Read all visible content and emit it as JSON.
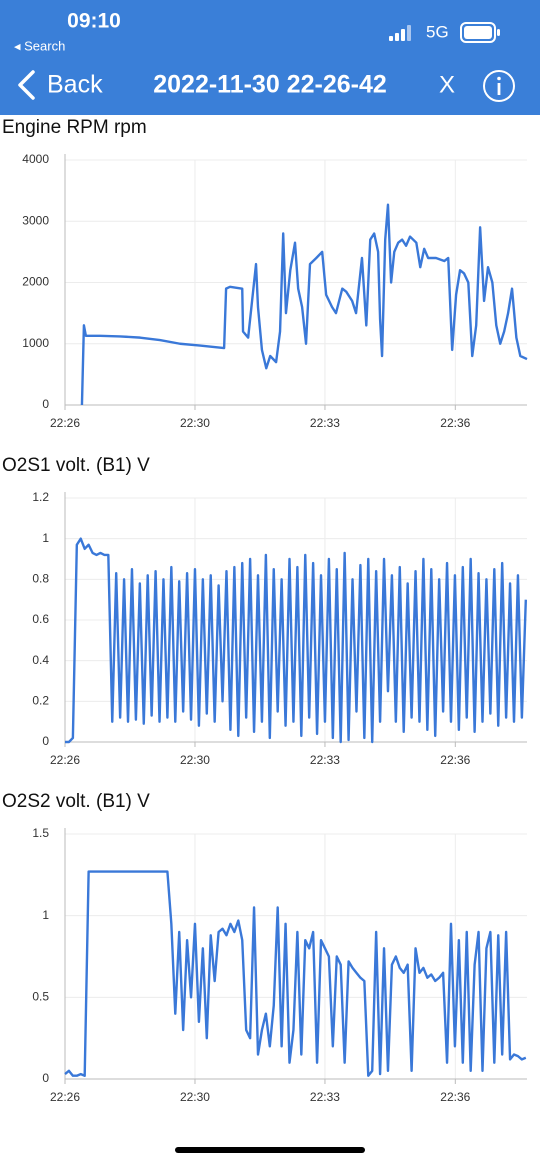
{
  "status": {
    "time": "09:10",
    "back_app": "◂ Search",
    "network": "5G"
  },
  "nav": {
    "back": "Back",
    "title": "2022-11-30 22-26-42",
    "close": "X"
  },
  "chart_data": [
    {
      "type": "line",
      "title": "Engine RPM  rpm",
      "color": "#3a78d8",
      "grid": true,
      "x": [
        1347.13,
        1347.18,
        1347.23,
        1347.59,
        1348.1,
        1348.61,
        1349.11,
        1349.62,
        1350.13,
        1350.74,
        1350.79,
        1350.89,
        1351.2,
        1351.22,
        1351.35,
        1351.45,
        1351.55,
        1351.6,
        1351.7,
        1351.81,
        1351.91,
        1352.06,
        1352.16,
        1352.24,
        1352.31,
        1352.42,
        1352.54,
        1352.62,
        1352.72,
        1352.82,
        1352.92,
        1353.08,
        1353.23,
        1353.33,
        1353.48,
        1353.58,
        1353.74,
        1353.84,
        1353.99,
        1354.09,
        1354.24,
        1354.35,
        1354.45,
        1354.55,
        1354.65,
        1354.7,
        1354.75,
        1354.83,
        1354.9,
        1354.98,
        1355.06,
        1355.16,
        1355.26,
        1355.36,
        1355.46,
        1355.62,
        1355.72,
        1355.82,
        1355.92,
        1356.12,
        1356.33,
        1356.43,
        1356.53,
        1356.63,
        1356.73,
        1356.83,
        1356.94,
        1357.04,
        1357.14,
        1357.24,
        1357.34,
        1357.44,
        1357.55,
        1357.65,
        1357.75,
        1357.85,
        1357.95,
        1358.05,
        1358.16,
        1358.26,
        1358.43
      ],
      "values": [
        0,
        1300,
        1130,
        1130,
        1120,
        1100,
        1060,
        1000,
        970,
        930,
        1900,
        1930,
        1900,
        1200,
        1100,
        1700,
        2300,
        1600,
        900,
        600,
        800,
        700,
        1200,
        2800,
        1500,
        2200,
        2650,
        1900,
        1600,
        1000,
        2300,
        2400,
        2500,
        1800,
        1600,
        1500,
        1900,
        1850,
        1700,
        1500,
        2400,
        1300,
        2700,
        2800,
        2500,
        1400,
        800,
        2700,
        3270,
        2000,
        2500,
        2650,
        2700,
        2600,
        2750,
        2650,
        2250,
        2550,
        2400,
        2400,
        2350,
        2400,
        900,
        1800,
        2200,
        2150,
        2000,
        800,
        1300,
        2900,
        1700,
        2250,
        2000,
        1300,
        1000,
        1200,
        1500,
        1900,
        1100,
        800,
        750
      ],
      "xlim": [
        1346.7,
        1358.43
      ],
      "xticks": [
        {
          "value": 1346.7,
          "label": "22:26"
        },
        {
          "value": 1350.0,
          "label": "22:30"
        },
        {
          "value": 1353.3,
          "label": "22:33"
        },
        {
          "value": 1356.61,
          "label": "22:36"
        }
      ],
      "ylim": [
        0,
        4000
      ],
      "yticks": [
        0,
        1000,
        2000,
        3000,
        4000
      ]
    },
    {
      "type": "line",
      "title": "O2S1 volt. (B1)  V",
      "color": "#3a78d8",
      "grid": true,
      "x": [
        1346.7,
        1346.8,
        1346.9,
        1347.0,
        1347.1,
        1347.2,
        1347.3,
        1347.4,
        1347.5,
        1347.6,
        1347.7,
        1347.8,
        1347.9,
        1348.0,
        1348.1,
        1348.2,
        1348.3,
        1348.4,
        1348.5,
        1348.6,
        1348.7,
        1348.8,
        1348.9,
        1349.0,
        1349.1,
        1349.2,
        1349.3,
        1349.4,
        1349.5,
        1349.6,
        1349.7,
        1349.8,
        1349.9,
        1350.0,
        1350.1,
        1350.2,
        1350.3,
        1350.4,
        1350.5,
        1350.6,
        1350.7,
        1350.8,
        1350.9,
        1351.0,
        1351.1,
        1351.2,
        1351.3,
        1351.4,
        1351.5,
        1351.6,
        1351.7,
        1351.8,
        1351.9,
        1352.0,
        1352.1,
        1352.2,
        1352.3,
        1352.4,
        1352.5,
        1352.6,
        1352.7,
        1352.8,
        1352.9,
        1353.0,
        1353.1,
        1353.2,
        1353.3,
        1353.4,
        1353.5,
        1353.6,
        1353.7,
        1353.8,
        1353.9,
        1354.0,
        1354.1,
        1354.2,
        1354.3,
        1354.4,
        1354.5,
        1354.6,
        1354.7,
        1354.8,
        1354.9,
        1355.0,
        1355.1,
        1355.2,
        1355.3,
        1355.4,
        1355.5,
        1355.6,
        1355.7,
        1355.8,
        1355.9,
        1356.0,
        1356.1,
        1356.2,
        1356.3,
        1356.4,
        1356.5,
        1356.6,
        1356.7,
        1356.8,
        1356.9,
        1357.0,
        1357.1,
        1357.2,
        1357.3,
        1357.4,
        1357.5,
        1357.6,
        1357.7,
        1357.8,
        1357.9,
        1358.0,
        1358.1,
        1358.2,
        1358.3,
        1358.4
      ],
      "values": [
        0,
        0,
        0.02,
        0.97,
        1.0,
        0.95,
        0.97,
        0.93,
        0.92,
        0.93,
        0.92,
        0.92,
        0.1,
        0.83,
        0.12,
        0.8,
        0.1,
        0.85,
        0.11,
        0.78,
        0.09,
        0.82,
        0.13,
        0.84,
        0.1,
        0.8,
        0.12,
        0.86,
        0.1,
        0.79,
        0.15,
        0.83,
        0.11,
        0.85,
        0.08,
        0.8,
        0.14,
        0.82,
        0.1,
        0.77,
        0.2,
        0.84,
        0.06,
        0.86,
        0.03,
        0.88,
        0.12,
        0.9,
        0.05,
        0.82,
        0.1,
        0.92,
        0.02,
        0.85,
        0.15,
        0.8,
        0.08,
        0.9,
        0.1,
        0.86,
        0.03,
        0.92,
        0.12,
        0.88,
        0.04,
        0.82,
        0.1,
        0.9,
        0.02,
        0.85,
        0,
        0.93,
        0.01,
        0.8,
        0.15,
        0.87,
        0.02,
        0.9,
        0,
        0.84,
        0.1,
        0.9,
        0.25,
        0.82,
        0.1,
        0.86,
        0.05,
        0.78,
        0.12,
        0.84,
        0.1,
        0.9,
        0.06,
        0.85,
        0.03,
        0.8,
        0.15,
        0.88,
        0.1,
        0.82,
        0.06,
        0.86,
        0.12,
        0.9,
        0.05,
        0.83,
        0.1,
        0.8,
        0.14,
        0.85,
        0.08,
        0.88,
        0.12,
        0.78,
        0.1,
        0.82,
        0.12,
        0.7
      ],
      "xlim": [
        1346.7,
        1358.43
      ],
      "xticks": [
        {
          "value": 1346.7,
          "label": "22:26"
        },
        {
          "value": 1350.0,
          "label": "22:30"
        },
        {
          "value": 1353.3,
          "label": "22:33"
        },
        {
          "value": 1356.61,
          "label": "22:36"
        }
      ],
      "ylim": [
        0,
        1.2
      ],
      "yticks": [
        0,
        0.2,
        0.4,
        0.6,
        0.8,
        1,
        1.2
      ]
    },
    {
      "type": "line",
      "title": "O2S2 volt. (B1)  V",
      "color": "#3a78d8",
      "grid": true,
      "x": [
        1346.7,
        1346.8,
        1346.9,
        1347.0,
        1347.1,
        1347.2,
        1347.3,
        1347.4,
        1347.5,
        1347.6,
        1347.7,
        1347.8,
        1347.9,
        1348.0,
        1348.1,
        1348.2,
        1348.3,
        1348.4,
        1348.5,
        1348.6,
        1348.7,
        1348.8,
        1348.9,
        1349.0,
        1349.1,
        1349.2,
        1349.3,
        1349.4,
        1349.5,
        1349.6,
        1349.7,
        1349.8,
        1349.9,
        1350.0,
        1350.1,
        1350.2,
        1350.3,
        1350.4,
        1350.5,
        1350.6,
        1350.7,
        1350.8,
        1350.9,
        1351.0,
        1351.1,
        1351.2,
        1351.3,
        1351.4,
        1351.5,
        1351.6,
        1351.7,
        1351.8,
        1351.9,
        1352.0,
        1352.1,
        1352.2,
        1352.3,
        1352.4,
        1352.5,
        1352.6,
        1352.7,
        1352.8,
        1352.9,
        1353.0,
        1353.1,
        1353.2,
        1353.3,
        1353.4,
        1353.5,
        1353.6,
        1353.7,
        1353.8,
        1353.9,
        1354.0,
        1354.1,
        1354.2,
        1354.3,
        1354.4,
        1354.5,
        1354.6,
        1354.7,
        1354.8,
        1354.9,
        1355.0,
        1355.1,
        1355.2,
        1355.3,
        1355.4,
        1355.5,
        1355.6,
        1355.7,
        1355.8,
        1355.9,
        1356.0,
        1356.1,
        1356.2,
        1356.3,
        1356.4,
        1356.5,
        1356.6,
        1356.7,
        1356.8,
        1356.9,
        1357.0,
        1357.1,
        1357.2,
        1357.3,
        1357.4,
        1357.5,
        1357.6,
        1357.7,
        1357.8,
        1357.9,
        1358.0,
        1358.1,
        1358.2,
        1358.3,
        1358.4
      ],
      "values": [
        0.03,
        0.05,
        0.02,
        0.02,
        0.03,
        0.02,
        1.27,
        1.27,
        1.27,
        1.27,
        1.27,
        1.27,
        1.27,
        1.27,
        1.27,
        1.27,
        1.27,
        1.27,
        1.27,
        1.27,
        1.27,
        1.27,
        1.27,
        1.27,
        1.27,
        1.27,
        1.27,
        0.95,
        0.4,
        0.9,
        0.3,
        0.85,
        0.5,
        0.95,
        0.35,
        0.8,
        0.25,
        0.88,
        0.6,
        0.9,
        0.92,
        0.88,
        0.95,
        0.9,
        0.97,
        0.85,
        0.3,
        0.25,
        1.05,
        0.15,
        0.3,
        0.4,
        0.2,
        0.45,
        1.05,
        0.2,
        0.95,
        0.1,
        0.3,
        0.9,
        0.15,
        0.85,
        0.8,
        0.9,
        0.1,
        0.85,
        0.8,
        0.75,
        0.2,
        0.75,
        0.7,
        0.1,
        0.72,
        0.68,
        0.65,
        0.62,
        0.6,
        0.02,
        0.05,
        0.9,
        0.03,
        0.8,
        0.05,
        0.7,
        0.75,
        0.68,
        0.65,
        0.7,
        0.05,
        0.8,
        0.65,
        0.68,
        0.62,
        0.64,
        0.6,
        0.62,
        0.65,
        0.1,
        0.95,
        0.2,
        0.85,
        0.1,
        0.9,
        0.05,
        0.7,
        0.9,
        0.05,
        0.8,
        0.9,
        0.1,
        0.88,
        0.15,
        0.9,
        0.12,
        0.15,
        0.14,
        0.12,
        0.13
      ],
      "xlim": [
        1346.7,
        1358.43
      ],
      "xticks": [
        {
          "value": 1346.7,
          "label": "22:26"
        },
        {
          "value": 1350.0,
          "label": "22:30"
        },
        {
          "value": 1353.3,
          "label": "22:33"
        },
        {
          "value": 1356.61,
          "label": "22:36"
        }
      ],
      "ylim": [
        0,
        1.5
      ],
      "yticks": [
        0,
        0.5,
        1,
        1.5
      ]
    }
  ]
}
